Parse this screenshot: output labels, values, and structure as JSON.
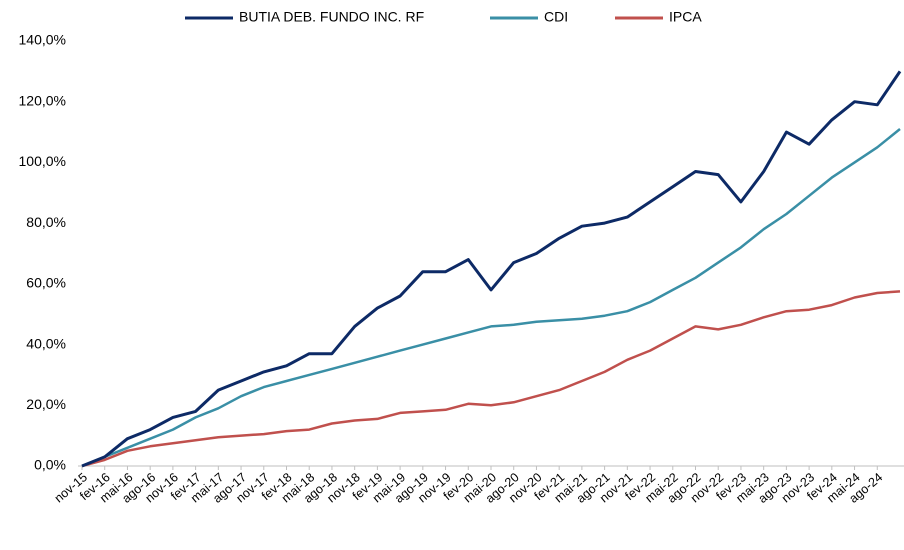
{
  "chart_data": {
    "type": "line",
    "categories": [
      "nov-15",
      "fev-16",
      "mai-16",
      "ago-16",
      "nov-16",
      "fev-17",
      "mai-17",
      "ago-17",
      "nov-17",
      "fev-18",
      "mai-18",
      "ago-18",
      "nov-18",
      "fev-19",
      "mai-19",
      "ago-19",
      "nov-19",
      "fev-20",
      "mai-20",
      "ago-20",
      "nov-20",
      "fev-21",
      "mai-21",
      "ago-21",
      "nov-21",
      "fev-22",
      "mai-22",
      "ago-22",
      "nov-22",
      "fev-23",
      "mai-23",
      "ago-23",
      "nov-23",
      "fev-24",
      "mai-24",
      "ago-24",
      null
    ],
    "series": [
      {
        "name": "BUTIA DEB. FUNDO INC. RF",
        "color": "#0d2a66",
        "values": [
          0,
          3,
          9,
          12,
          16,
          18,
          25,
          28,
          31,
          33,
          37,
          37,
          46,
          52,
          56,
          64,
          64,
          68,
          58,
          67,
          70,
          75,
          79,
          80,
          82,
          87,
          92,
          97,
          96,
          87,
          97,
          110,
          106,
          114,
          120,
          119,
          130
        ]
      },
      {
        "name": "CDI",
        "color": "#3a8fa6",
        "values": [
          0,
          3,
          6,
          9,
          12,
          16,
          19,
          23,
          26,
          28,
          30,
          32,
          34,
          36,
          38,
          40,
          42,
          44,
          46,
          46.5,
          47.5,
          48,
          48.5,
          49.5,
          51,
          54,
          58,
          62,
          67,
          72,
          78,
          83,
          89,
          95,
          100,
          105,
          111
        ]
      },
      {
        "name": "IPCA",
        "color": "#c0504d",
        "values": [
          0,
          2,
          5,
          6.5,
          7.5,
          8.5,
          9.5,
          10,
          10.5,
          11.5,
          12,
          14,
          15,
          15.5,
          17.5,
          18,
          18.5,
          20.5,
          20,
          21,
          23,
          25,
          28,
          31,
          35,
          38,
          42,
          46,
          45,
          46.5,
          49,
          51,
          51.5,
          53,
          55.5,
          57,
          57.5
        ]
      }
    ],
    "ylim": [
      0,
      140
    ],
    "yticks": [
      {
        "value": 0,
        "label": "0,0%"
      },
      {
        "value": 20,
        "label": "20,0%"
      },
      {
        "value": 40,
        "label": "40,0%"
      },
      {
        "value": 60,
        "label": "60,0%"
      },
      {
        "value": 80,
        "label": "80,0%"
      },
      {
        "value": 100,
        "label": "100,0%"
      },
      {
        "value": 120,
        "label": "120,0%"
      },
      {
        "value": 140,
        "label": "140,0%"
      }
    ],
    "grid": false,
    "legend": "top"
  }
}
